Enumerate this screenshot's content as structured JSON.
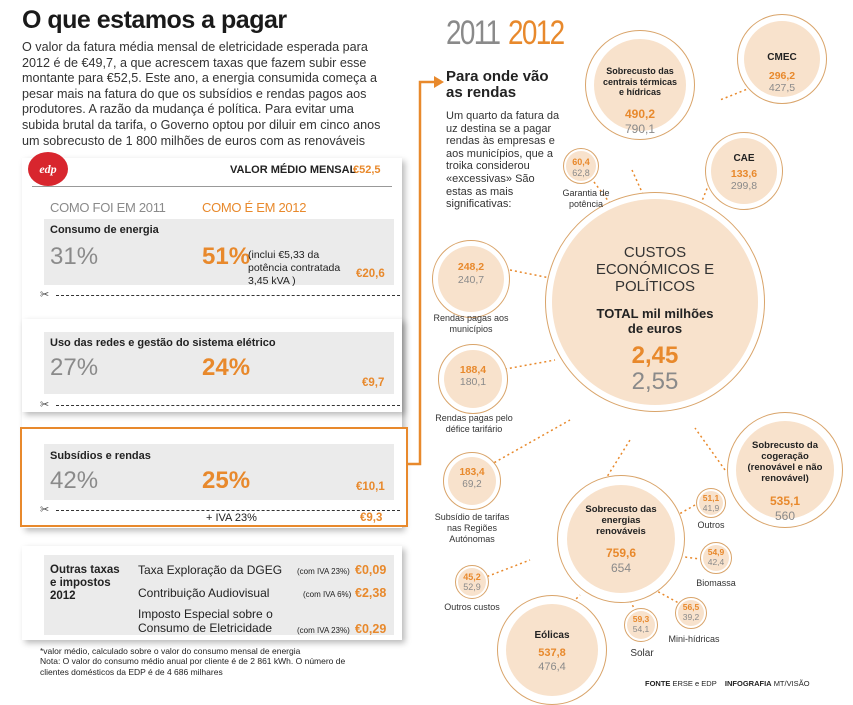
{
  "headline": "O que estamos a pagar",
  "intro": "O valor da fatura média mensal de eletricidade esperada para 2012 é de €49,7, a que acrescem taxas que fazem subir esse montante para €52,5. Este ano, a energia consumida começa a pesar mais na fatura do que os subsídios e rendas pagos aos produtores. A razão da mudança é política. Para evitar uma subida brutal da tarifa, o Governo optou por diluir em cinco anos um sobrecusto de 1 800 milhões de euros com as renováveis",
  "years": {
    "y2011": "2011",
    "y2012": "2012"
  },
  "invoice": {
    "logo": "edp",
    "avg_label": "VALOR MÉDIO MENSAL",
    "avg_value": "€52,5",
    "col_2011": "COMO FOI EM 2011",
    "col_2012": "COMO É EM 2012",
    "rows": [
      {
        "title": "Consumo de energia",
        "pct_2011": "31%",
        "pct_2012": "51%",
        "note": "(inclui €5,33 da potência contratada 3,45 kVA )",
        "euro": "€20,6"
      },
      {
        "title": "Uso das redes e gestão do sistema elétrico",
        "pct_2011": "27%",
        "pct_2012": "24%",
        "note": "",
        "euro": "€9,7"
      },
      {
        "title": "Subsídios e rendas",
        "pct_2011": "42%",
        "pct_2012": "25%",
        "note": "",
        "euro": "€10,1",
        "iva_label": "+ IVA 23%",
        "iva_euro": "€9,3"
      }
    ]
  },
  "taxes": {
    "title": "Outras taxas e impostos 2012",
    "items": [
      {
        "name": "Taxa Exploração da DGEG",
        "iva": "(com IVA 23%)",
        "value": "€0,09"
      },
      {
        "name": "Contribuição Audiovisual",
        "iva": "(com IVA 6%)",
        "value": "€2,38"
      },
      {
        "name": "Imposto Especial sobre o Consumo de Eletricidade",
        "iva": "(com IVA 23%)",
        "value": "€0,29"
      }
    ]
  },
  "footnote1": "*valor médio, calculado sobre o valor do consumo mensal de energia",
  "footnote2": "Nota:  O valor do consumo médio anual por cliente é de 2 861 kWh. O número de clientes domésticos da EDP é de 4 686 milhares",
  "rendas": {
    "title": "Para onde vão as rendas",
    "text": "Um quarto da fatura da uz destina se a pagar rendas às empresas e aos municípios, que a troika considerou «excessivas» São estas as mais significativas:"
  },
  "center": {
    "label": "CUSTOS ECONÓMICOS E POLÍTICOS",
    "total_label": "TOTAL mil milhões de euros",
    "v2012": "2,45",
    "v2011": "2,55"
  },
  "bubbles": [
    {
      "id": "termicas",
      "label": "Sobrecusto das centrais térmicas e hídricas",
      "v2012": "490,2",
      "v2011": "790,1"
    },
    {
      "id": "cmec",
      "label": "CMEC",
      "v2012": "296,2",
      "v2011": "427,5"
    },
    {
      "id": "cae",
      "label": "CAE",
      "v2012": "133,6",
      "v2011": "299,8"
    },
    {
      "id": "garantia",
      "label": "Garantia de potência",
      "v2012": "60,4",
      "v2011": "62,8"
    },
    {
      "id": "municipios",
      "label": "Rendas pagas aos municípios",
      "v2012": "248,2",
      "v2011": "240,7"
    },
    {
      "id": "defice",
      "label": "Rendas pagas pelo défice tarifário",
      "v2012": "188,4",
      "v2011": "180,1"
    },
    {
      "id": "autonomas",
      "label": "Subsídio de tarifas nas Regiões Autónomas",
      "v2012": "183,4",
      "v2011": "69,2"
    },
    {
      "id": "outros_custos",
      "label": "Outros custos",
      "v2012": "45,2",
      "v2011": "52,9"
    },
    {
      "id": "cogeracao",
      "label": "Sobrecusto da cogeração (renovável e não renovável)",
      "v2012": "535,1",
      "v2011": "560"
    },
    {
      "id": "renovaveis",
      "label": "Sobrecusto das energias renováveis",
      "v2012": "759,6",
      "v2011": "654"
    },
    {
      "id": "outros",
      "label": "Outros",
      "v2012": "51,1",
      "v2011": "41,9"
    },
    {
      "id": "biomassa",
      "label": "Biomassa",
      "v2012": "54,9",
      "v2011": "42,4"
    },
    {
      "id": "minihidricas",
      "label": "Mini-hídricas",
      "v2012": "56,5",
      "v2011": "39,2"
    },
    {
      "id": "solar",
      "label": "Solar",
      "v2012": "59,3",
      "v2011": "54,1"
    },
    {
      "id": "eolicas",
      "label": "Eólicas",
      "v2012": "537,8",
      "v2011": "476,4"
    }
  ],
  "credits": {
    "fonte_label": "FONTE",
    "fonte": "ERSE e EDP",
    "infografia_label": "INFOGRAFIA",
    "infografia": "MT/VISÃO"
  },
  "colors": {
    "accent": "#e8892c",
    "old": "#8a8a8a",
    "bubble_fill": "#f8e2cc",
    "bubble_ring": "#d9a46a"
  }
}
